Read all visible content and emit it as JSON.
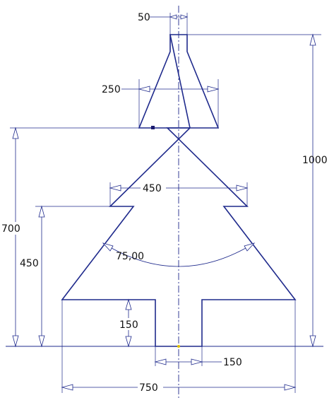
{
  "dimensions": {
    "trunk_top_width": "50",
    "upper_tier_width": "250",
    "overall_height": "1000",
    "middle_tier_width": "450",
    "tier_base_height": "700",
    "lower_tier_height": "450",
    "included_angle": "75,00",
    "trunk_height": "150",
    "trunk_width": "150",
    "base_width": "750"
  },
  "colors": {
    "line": "#1f2a8c",
    "text": "#111111",
    "marker": "#1a1a6e",
    "origin": "#e0c000"
  }
}
